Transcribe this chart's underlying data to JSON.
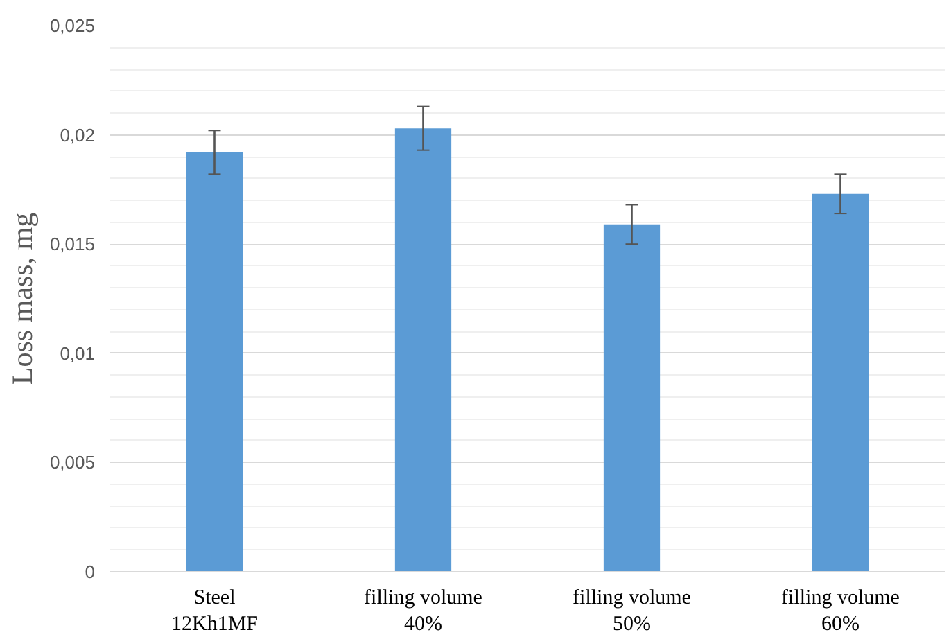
{
  "chart_data": {
    "type": "bar",
    "ylabel": "Loss mass, mg",
    "categories": [
      "Steel\n12Kh1MF",
      "filling volume\n40%",
      "filling volume\n50%",
      "filling volume\n60%"
    ],
    "values": [
      0.0192,
      0.0203,
      0.0159,
      0.0173
    ],
    "errors": [
      0.001,
      0.001,
      0.0009,
      0.0009
    ],
    "color": "#5b9bd5",
    "ylim": [
      0,
      0.025
    ],
    "yticks": [
      {
        "value": 0,
        "label": "0"
      },
      {
        "value": 0.001,
        "label": null
      },
      {
        "value": 0.002,
        "label": null
      },
      {
        "value": 0.003,
        "label": null
      },
      {
        "value": 0.004,
        "label": null
      },
      {
        "value": 0.005,
        "label": "0,005"
      },
      {
        "value": 0.006,
        "label": null
      },
      {
        "value": 0.007,
        "label": null
      },
      {
        "value": 0.008,
        "label": null
      },
      {
        "value": 0.009,
        "label": null
      },
      {
        "value": 0.01,
        "label": "0,01"
      },
      {
        "value": 0.011,
        "label": null
      },
      {
        "value": 0.012,
        "label": null
      },
      {
        "value": 0.013,
        "label": null
      },
      {
        "value": 0.014,
        "label": null
      },
      {
        "value": 0.015,
        "label": "0,015"
      },
      {
        "value": 0.016,
        "label": null
      },
      {
        "value": 0.017,
        "label": null
      },
      {
        "value": 0.018,
        "label": null
      },
      {
        "value": 0.019,
        "label": null
      },
      {
        "value": 0.02,
        "label": "0,02"
      },
      {
        "value": 0.021,
        "label": null
      },
      {
        "value": 0.022,
        "label": null
      },
      {
        "value": 0.023,
        "label": null
      },
      {
        "value": 0.024,
        "label": null
      },
      {
        "value": 0.025,
        "label": "0,025"
      }
    ],
    "grid": "y"
  }
}
